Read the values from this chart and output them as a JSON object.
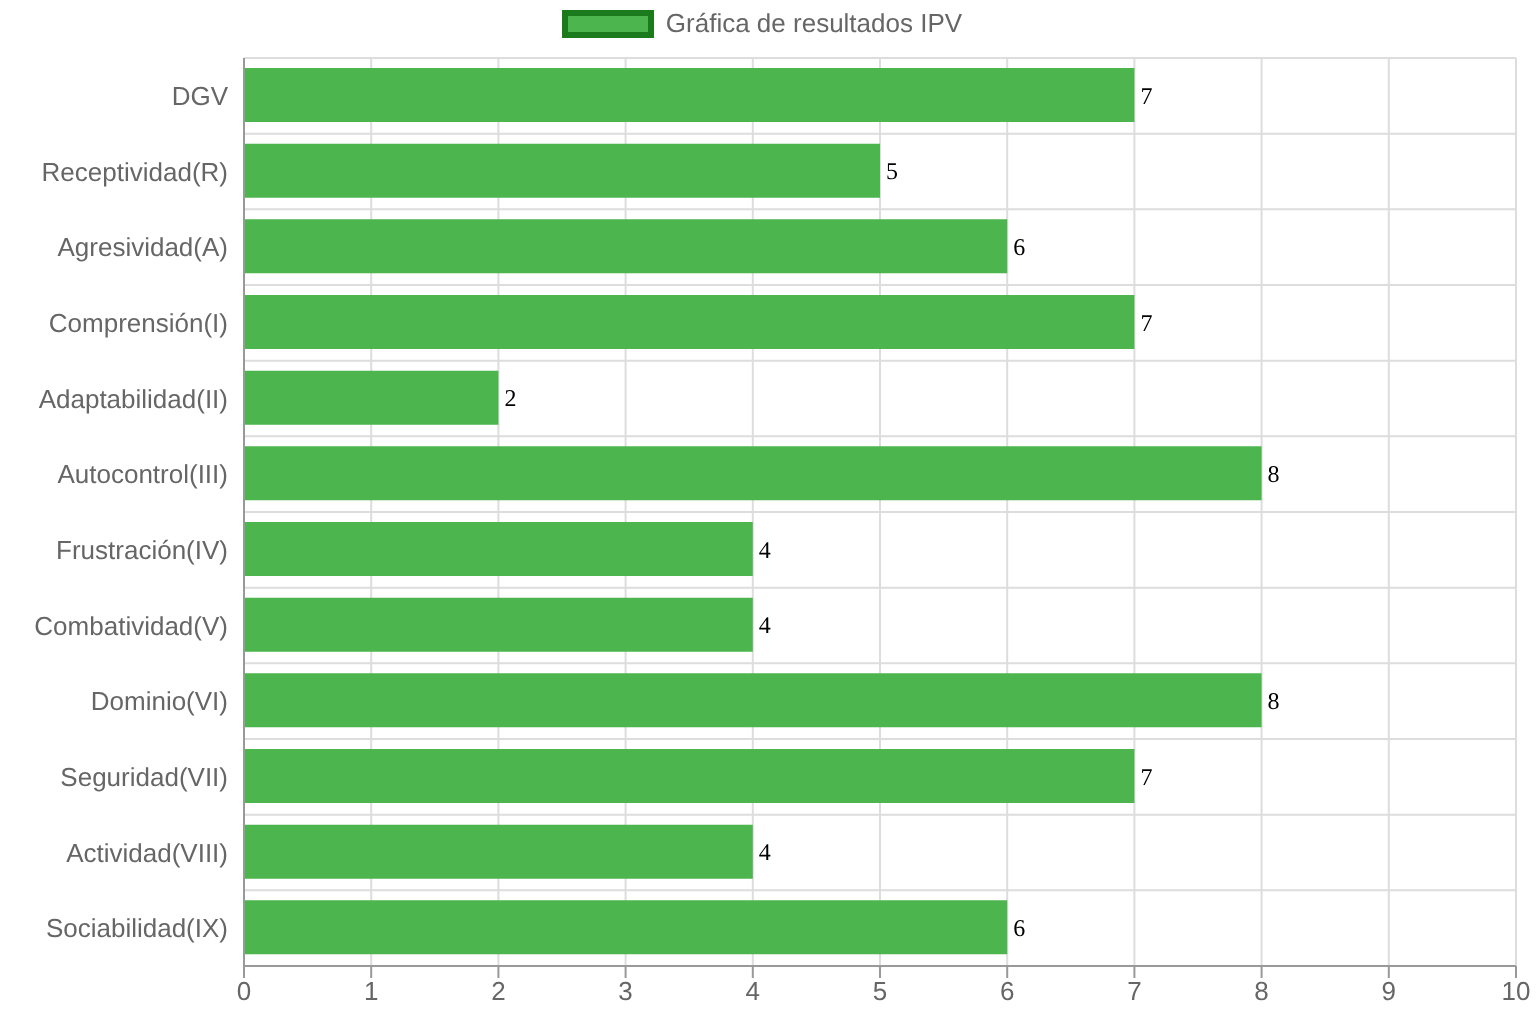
{
  "chart_data": {
    "type": "bar",
    "orientation": "horizontal",
    "categories": [
      "DGV",
      "Receptividad(R)",
      "Agresividad(A)",
      "Comprensión(I)",
      "Adaptabilidad(II)",
      "Autocontrol(III)",
      "Frustración(IV)",
      "Combatividad(V)",
      "Dominio(VI)",
      "Seguridad(VII)",
      "Actividad(VIII)",
      "Sociabilidad(IX)"
    ],
    "series": [
      {
        "name": "Gráfica de resultados IPV",
        "color": "#4db54d",
        "values": [
          7,
          5,
          6,
          7,
          2,
          8,
          4,
          4,
          8,
          7,
          4,
          6
        ]
      }
    ],
    "xlim": [
      0,
      10
    ],
    "xticks": [
      0,
      1,
      2,
      3,
      4,
      5,
      6,
      7,
      8,
      9,
      10
    ],
    "grid": true,
    "legend": "top",
    "data_labels": true
  }
}
